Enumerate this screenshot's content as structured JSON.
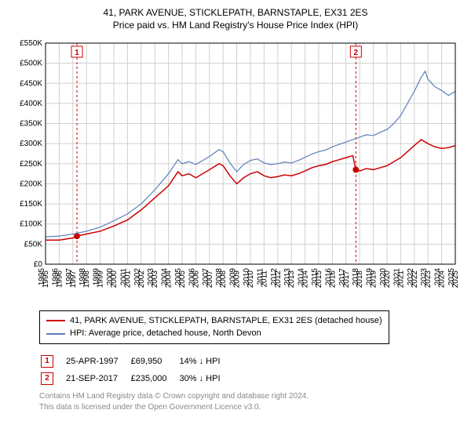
{
  "header": {
    "title": "41, PARK AVENUE, STICKLEPATH, BARNSTAPLE, EX31 2ES",
    "subtitle": "Price paid vs. HM Land Registry's House Price Index (HPI)"
  },
  "chart": {
    "type": "line",
    "background_color": "#ffffff",
    "plot_background": "#ffffff",
    "grid_color": "#d0d0d0",
    "axis_color": "#000000",
    "label_fontsize": 10,
    "tick_fontsize": 10,
    "ylim": [
      0,
      550000
    ],
    "ytick_step": 50000,
    "ytick_prefix": "£",
    "ytick_suffix": "K",
    "yticks": [
      "£0",
      "£50K",
      "£100K",
      "£150K",
      "£200K",
      "£250K",
      "£300K",
      "£350K",
      "£400K",
      "£450K",
      "£500K",
      "£550K"
    ],
    "xlim": [
      1995,
      2025
    ],
    "xticks": [
      1995,
      1996,
      1997,
      1998,
      1999,
      2000,
      2001,
      2002,
      2003,
      2004,
      2005,
      2006,
      2007,
      2008,
      2009,
      2010,
      2011,
      2012,
      2013,
      2014,
      2015,
      2016,
      2017,
      2018,
      2019,
      2020,
      2021,
      2022,
      2023,
      2024,
      2025
    ],
    "marker_line_color": "#cc0000",
    "marker_line_dash": "3,3",
    "series": [
      {
        "name": "price_paid",
        "label": "41, PARK AVENUE, STICKLEPATH, BARNSTAPLE, EX31 2ES (detached house)",
        "color": "#cc0000",
        "line_width": 1.5,
        "marker_color": "#cc0000",
        "marker_radius": 4,
        "points": [
          [
            1995.0,
            60000
          ],
          [
            1996.0,
            60000
          ],
          [
            1997.0,
            65000
          ],
          [
            1997.3,
            69950
          ],
          [
            1998.0,
            75000
          ],
          [
            1999.0,
            82000
          ],
          [
            2000.0,
            95000
          ],
          [
            2001.0,
            110000
          ],
          [
            2002.0,
            135000
          ],
          [
            2003.0,
            165000
          ],
          [
            2004.0,
            195000
          ],
          [
            2004.7,
            230000
          ],
          [
            2005.0,
            220000
          ],
          [
            2005.5,
            225000
          ],
          [
            2006.0,
            215000
          ],
          [
            2006.5,
            225000
          ],
          [
            2007.0,
            235000
          ],
          [
            2007.7,
            250000
          ],
          [
            2008.0,
            245000
          ],
          [
            2008.5,
            220000
          ],
          [
            2009.0,
            200000
          ],
          [
            2009.5,
            215000
          ],
          [
            2010.0,
            225000
          ],
          [
            2010.5,
            230000
          ],
          [
            2011.0,
            220000
          ],
          [
            2011.5,
            215000
          ],
          [
            2012.0,
            218000
          ],
          [
            2012.5,
            222000
          ],
          [
            2013.0,
            220000
          ],
          [
            2013.5,
            225000
          ],
          [
            2014.0,
            232000
          ],
          [
            2014.5,
            240000
          ],
          [
            2015.0,
            245000
          ],
          [
            2015.5,
            248000
          ],
          [
            2016.0,
            255000
          ],
          [
            2016.5,
            260000
          ],
          [
            2017.0,
            265000
          ],
          [
            2017.5,
            270000
          ],
          [
            2017.72,
            235000
          ],
          [
            2018.0,
            232000
          ],
          [
            2018.5,
            238000
          ],
          [
            2019.0,
            235000
          ],
          [
            2019.5,
            240000
          ],
          [
            2020.0,
            245000
          ],
          [
            2020.5,
            255000
          ],
          [
            2021.0,
            265000
          ],
          [
            2021.5,
            280000
          ],
          [
            2022.0,
            295000
          ],
          [
            2022.5,
            310000
          ],
          [
            2023.0,
            300000
          ],
          [
            2023.5,
            292000
          ],
          [
            2024.0,
            288000
          ],
          [
            2024.5,
            290000
          ],
          [
            2025.0,
            295000
          ]
        ],
        "sale_markers": [
          {
            "x": 1997.3,
            "y": 69950
          },
          {
            "x": 2017.72,
            "y": 235000
          }
        ]
      },
      {
        "name": "hpi",
        "label": "HPI: Average price, detached house, North Devon",
        "color": "#5b7fb8",
        "line_width": 1.2,
        "points": [
          [
            1995.0,
            68000
          ],
          [
            1996.0,
            70000
          ],
          [
            1997.0,
            75000
          ],
          [
            1998.0,
            82000
          ],
          [
            1999.0,
            92000
          ],
          [
            2000.0,
            108000
          ],
          [
            2001.0,
            125000
          ],
          [
            2002.0,
            150000
          ],
          [
            2003.0,
            185000
          ],
          [
            2004.0,
            225000
          ],
          [
            2004.7,
            260000
          ],
          [
            2005.0,
            250000
          ],
          [
            2005.5,
            255000
          ],
          [
            2006.0,
            248000
          ],
          [
            2006.5,
            258000
          ],
          [
            2007.0,
            268000
          ],
          [
            2007.7,
            285000
          ],
          [
            2008.0,
            280000
          ],
          [
            2008.5,
            252000
          ],
          [
            2009.0,
            230000
          ],
          [
            2009.5,
            248000
          ],
          [
            2010.0,
            258000
          ],
          [
            2010.5,
            262000
          ],
          [
            2011.0,
            252000
          ],
          [
            2011.5,
            248000
          ],
          [
            2012.0,
            250000
          ],
          [
            2012.5,
            254000
          ],
          [
            2013.0,
            252000
          ],
          [
            2013.5,
            258000
          ],
          [
            2014.0,
            266000
          ],
          [
            2014.5,
            274000
          ],
          [
            2015.0,
            280000
          ],
          [
            2015.5,
            284000
          ],
          [
            2016.0,
            292000
          ],
          [
            2016.5,
            298000
          ],
          [
            2017.0,
            304000
          ],
          [
            2017.5,
            310000
          ],
          [
            2018.0,
            316000
          ],
          [
            2018.5,
            322000
          ],
          [
            2019.0,
            320000
          ],
          [
            2019.5,
            328000
          ],
          [
            2020.0,
            335000
          ],
          [
            2020.5,
            350000
          ],
          [
            2021.0,
            370000
          ],
          [
            2021.5,
            400000
          ],
          [
            2022.0,
            430000
          ],
          [
            2022.5,
            465000
          ],
          [
            2022.8,
            480000
          ],
          [
            2023.0,
            460000
          ],
          [
            2023.5,
            442000
          ],
          [
            2024.0,
            432000
          ],
          [
            2024.5,
            420000
          ],
          [
            2025.0,
            430000
          ]
        ]
      }
    ],
    "event_markers": [
      {
        "index": "1",
        "x": 1997.3,
        "box_color": "#cc0000"
      },
      {
        "index": "2",
        "x": 2017.72,
        "box_color": "#cc0000"
      }
    ]
  },
  "legend": {
    "rows": [
      {
        "color": "#cc0000",
        "label": "41, PARK AVENUE, STICKLEPATH, BARNSTAPLE, EX31 2ES (detached house)"
      },
      {
        "color": "#5b7fb8",
        "label": "HPI: Average price, detached house, North Devon"
      }
    ]
  },
  "events_table": {
    "rows": [
      {
        "index": "1",
        "color": "#cc0000",
        "date": "25-APR-1997",
        "price": "£69,950",
        "delta": "14% ↓ HPI"
      },
      {
        "index": "2",
        "color": "#cc0000",
        "date": "21-SEP-2017",
        "price": "£235,000",
        "delta": "30% ↓ HPI"
      }
    ]
  },
  "attribution": {
    "line1": "Contains HM Land Registry data © Crown copyright and database right 2024.",
    "line2": "This data is licensed under the Open Government Licence v3.0."
  }
}
